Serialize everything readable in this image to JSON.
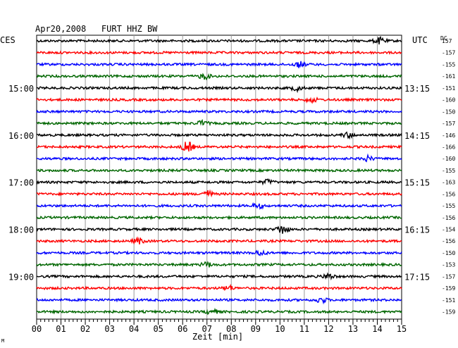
{
  "chart_data": {
    "type": "line",
    "title": "Apr20,2008   FURT HHZ BW",
    "left_axis_title": "CES",
    "right_axis_title": "UTC",
    "dc_label": "DC",
    "xlabel": "Zeit [min]",
    "xlim": [
      0,
      15
    ],
    "x_ticks": [
      "00",
      "01",
      "02",
      "03",
      "04",
      "05",
      "06",
      "07",
      "08",
      "09",
      "10",
      "11",
      "12",
      "13",
      "14",
      "15"
    ],
    "trace_colors": [
      "#000000",
      "#ff0000",
      "#0000ff",
      "#006600"
    ],
    "trace_count": 24,
    "dc_values": [
      "157",
      "-157",
      "-155",
      "-161",
      "-151",
      "-160",
      "-150",
      "-157",
      "-146",
      "-166",
      "-160",
      "-155",
      "-163",
      "-156",
      "-155",
      "-156",
      "-154",
      "-156",
      "-150",
      "-153",
      "-157",
      "-159",
      "-151",
      "-159"
    ],
    "left_time_labels": [
      {
        "trace": 4,
        "text": "15:00"
      },
      {
        "trace": 8,
        "text": "16:00"
      },
      {
        "trace": 12,
        "text": "17:00"
      },
      {
        "trace": 16,
        "text": "18:00"
      },
      {
        "trace": 20,
        "text": "19:00"
      }
    ],
    "right_time_labels": [
      {
        "trace": 4,
        "text": "13:15"
      },
      {
        "trace": 8,
        "text": "14:15"
      },
      {
        "trace": 12,
        "text": "15:15"
      },
      {
        "trace": 16,
        "text": "16:15"
      },
      {
        "trace": 20,
        "text": "17:15"
      }
    ],
    "events": [
      {
        "trace": 0,
        "x": 14.1,
        "amp": 2.0
      },
      {
        "trace": 2,
        "x": 10.8,
        "amp": 1.8
      },
      {
        "trace": 3,
        "x": 6.9,
        "amp": 1.8
      },
      {
        "trace": 4,
        "x": 10.7,
        "amp": 1.6
      },
      {
        "trace": 5,
        "x": 11.3,
        "amp": 1.5
      },
      {
        "trace": 7,
        "x": 6.8,
        "amp": 1.6
      },
      {
        "trace": 8,
        "x": 12.8,
        "amp": 1.6
      },
      {
        "trace": 9,
        "x": 6.2,
        "amp": 3.5
      },
      {
        "trace": 10,
        "x": 13.6,
        "amp": 1.6
      },
      {
        "trace": 12,
        "x": 9.5,
        "amp": 1.5
      },
      {
        "trace": 13,
        "x": 7.0,
        "amp": 2.2
      },
      {
        "trace": 14,
        "x": 9.1,
        "amp": 1.6
      },
      {
        "trace": 16,
        "x": 10.1,
        "amp": 3.0
      },
      {
        "trace": 17,
        "x": 4.2,
        "amp": 1.8
      },
      {
        "trace": 18,
        "x": 9.2,
        "amp": 1.6
      },
      {
        "trace": 19,
        "x": 7.0,
        "amp": 1.6
      },
      {
        "trace": 20,
        "x": 12.0,
        "amp": 1.8
      },
      {
        "trace": 21,
        "x": 7.9,
        "amp": 1.5
      },
      {
        "trace": 22,
        "x": 11.7,
        "amp": 1.8
      },
      {
        "trace": 23,
        "x": 7.2,
        "amp": 1.6
      }
    ],
    "corner_mark": "M"
  }
}
